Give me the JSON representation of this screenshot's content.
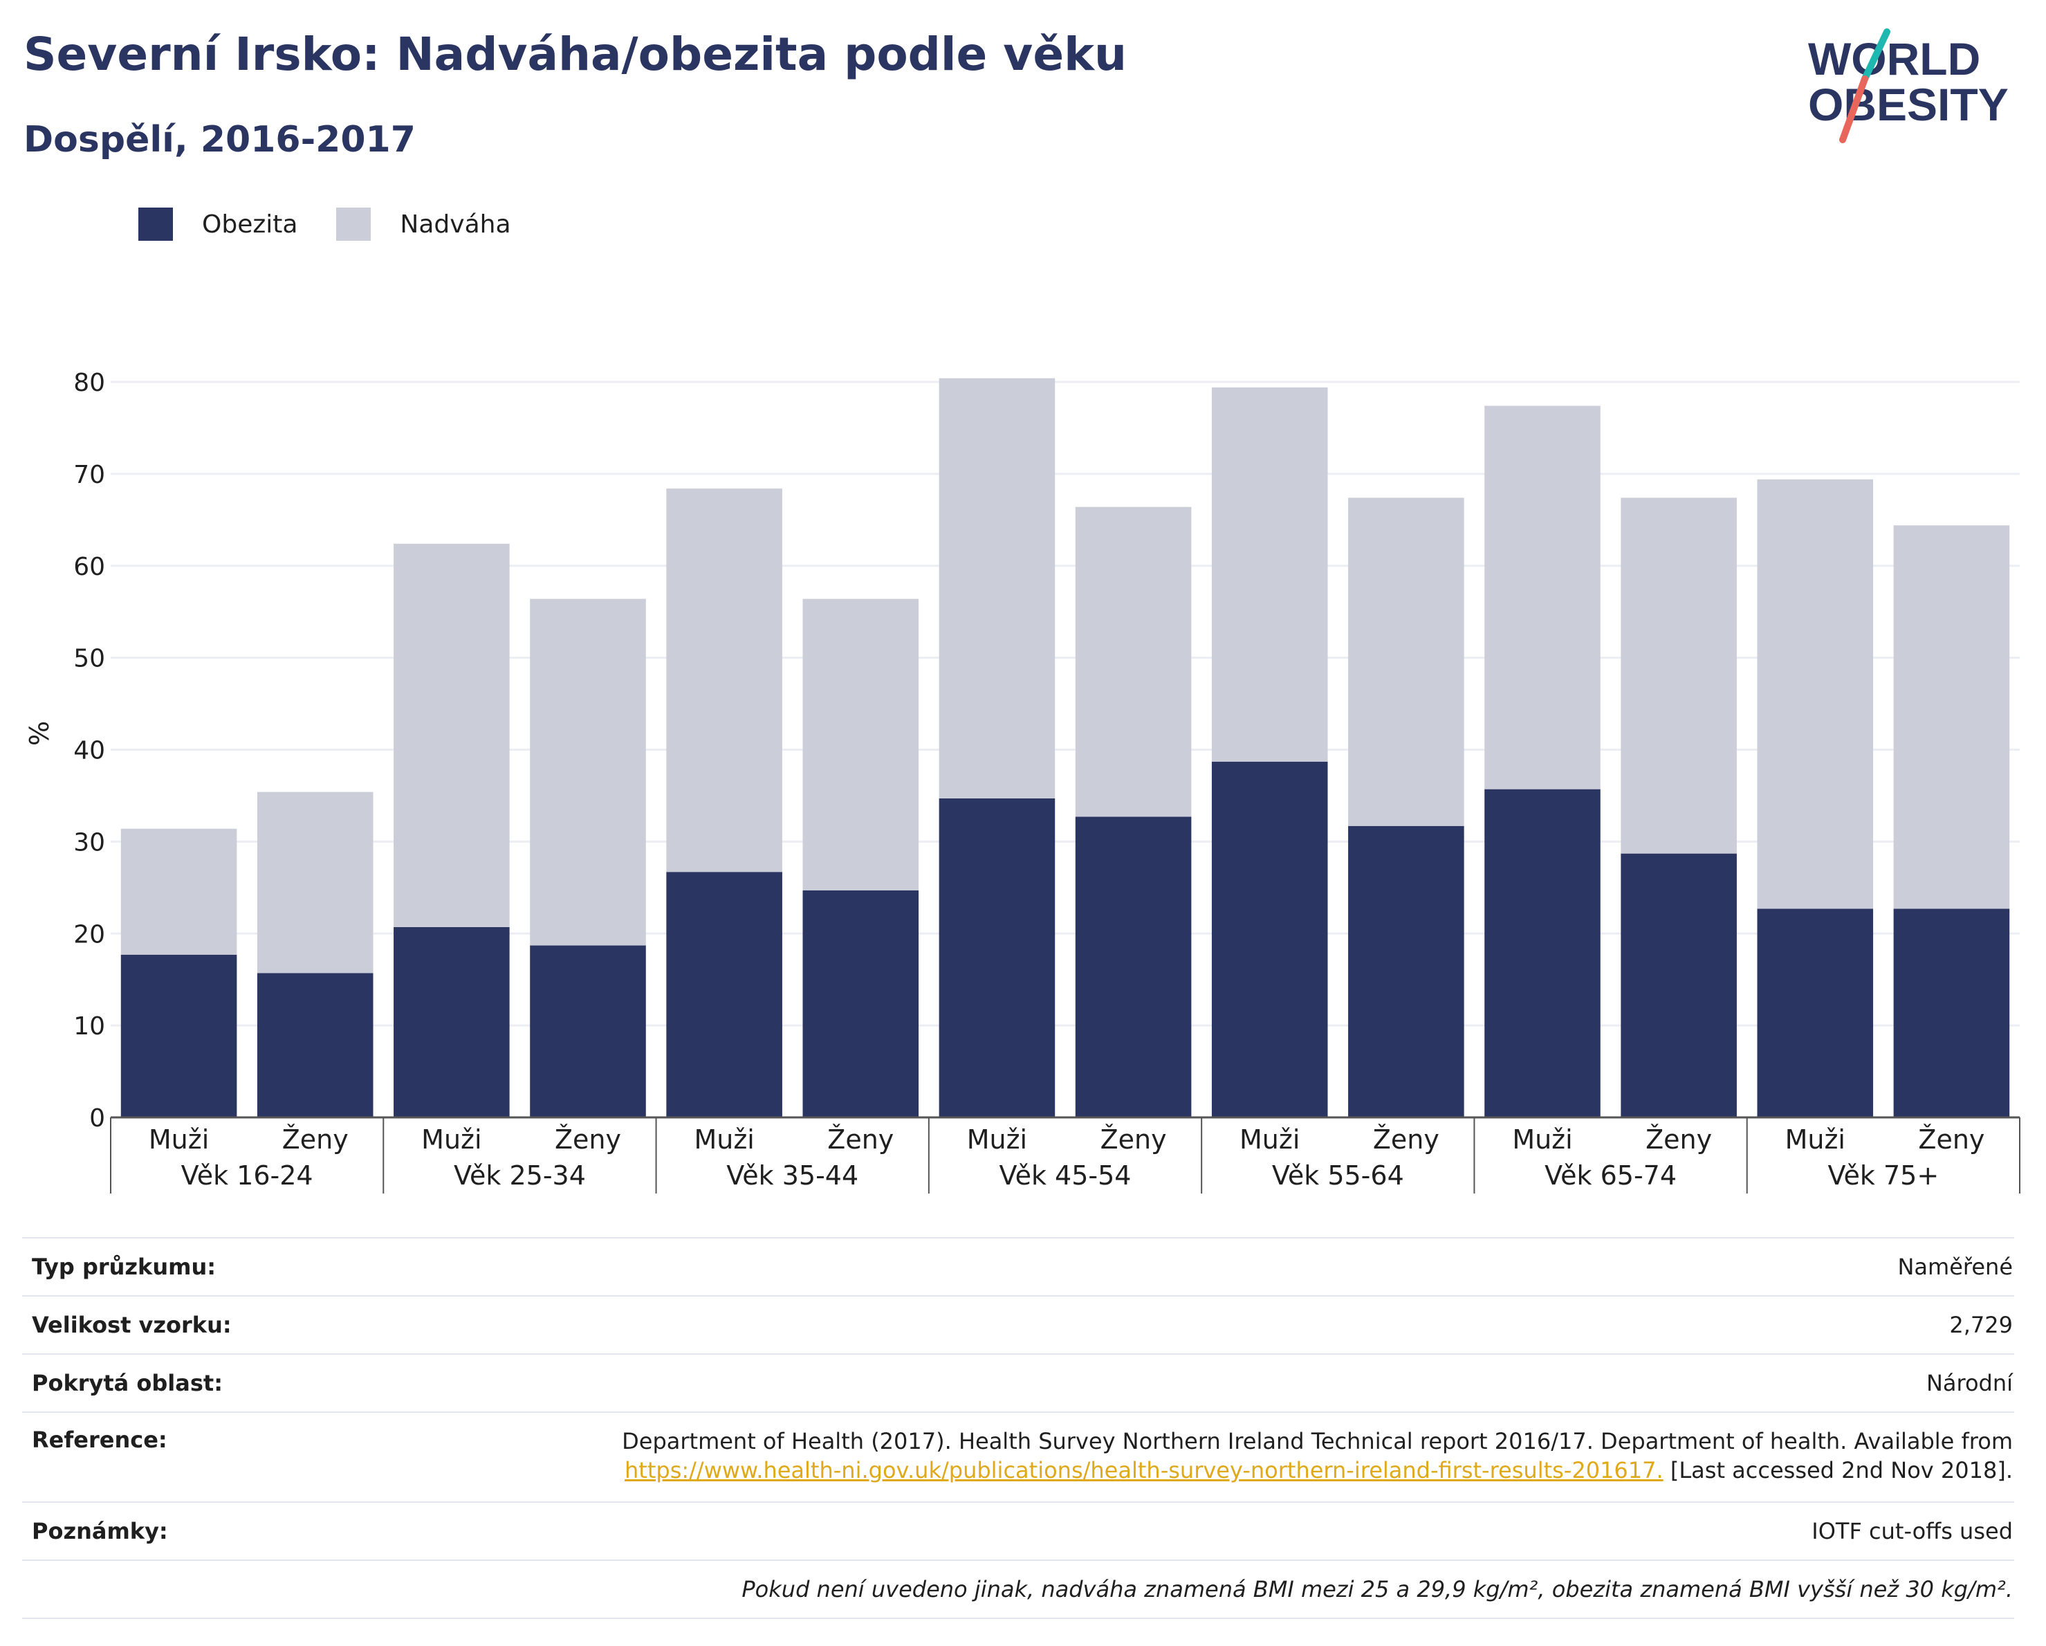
{
  "title": "Severní Irsko: Nadváha/obezita podle věku",
  "subtitle": "Dospělí, 2016-2017",
  "logo": {
    "line1": "WORLD",
    "line2": "OBESITY",
    "text_color": "#2b3562",
    "slash_colors": [
      "#1fb8b0",
      "#e8665b"
    ]
  },
  "legend": [
    {
      "label": "Obezita",
      "color": "#2b3562"
    },
    {
      "label": "Nadváha",
      "color": "#cbcdd8"
    }
  ],
  "chart_data": {
    "type": "bar",
    "stacked": true,
    "ylabel": "%",
    "ylim": [
      0,
      80
    ],
    "yticks": [
      0,
      10,
      20,
      30,
      40,
      50,
      60,
      70,
      80
    ],
    "grid": true,
    "groups": [
      "Věk 16-24",
      "Věk 25-34",
      "Věk 35-44",
      "Věk 45-54",
      "Věk 55-64",
      "Věk 65-74",
      "Věk 75+"
    ],
    "subcategories": [
      "Muži",
      "Ženy"
    ],
    "series": [
      {
        "name": "Obezita",
        "color": "#2b3562",
        "values": [
          17.7,
          15.7,
          20.7,
          18.7,
          26.7,
          24.7,
          34.7,
          32.7,
          38.7,
          31.7,
          35.7,
          28.7,
          22.7,
          22.7
        ]
      },
      {
        "name": "Nadváha",
        "color": "#cbcdd8",
        "values": [
          13.7,
          19.7,
          41.7,
          37.7,
          41.7,
          31.7,
          45.7,
          33.7,
          40.7,
          35.7,
          41.7,
          38.7,
          46.7,
          41.7
        ]
      }
    ]
  },
  "info": {
    "survey_type": {
      "label": "Typ průzkumu:",
      "value": "Naměřené"
    },
    "sample_size": {
      "label": "Velikost vzorku:",
      "value": "2,729"
    },
    "area": {
      "label": "Pokrytá oblast:",
      "value": "Národní"
    },
    "reference": {
      "label": "Reference:",
      "text": "Department of Health (2017). Health Survey Northern Ireland Technical report 2016/17. Department of health. Available from",
      "link": "https://www.health-ni.gov.uk/publications/health-survey-northern-ireland-first-results-201617.",
      "suffix": "[Last accessed 2nd Nov 2018]."
    },
    "notes": {
      "label": "Poznámky:",
      "value": "IOTF cut-offs used"
    },
    "footnote": "Pokud není uvedeno jinak, nadváha znamená BMI mezi 25 a 29,9 kg/m², obezita znamená BMI vyšší než 30 kg/m²."
  }
}
